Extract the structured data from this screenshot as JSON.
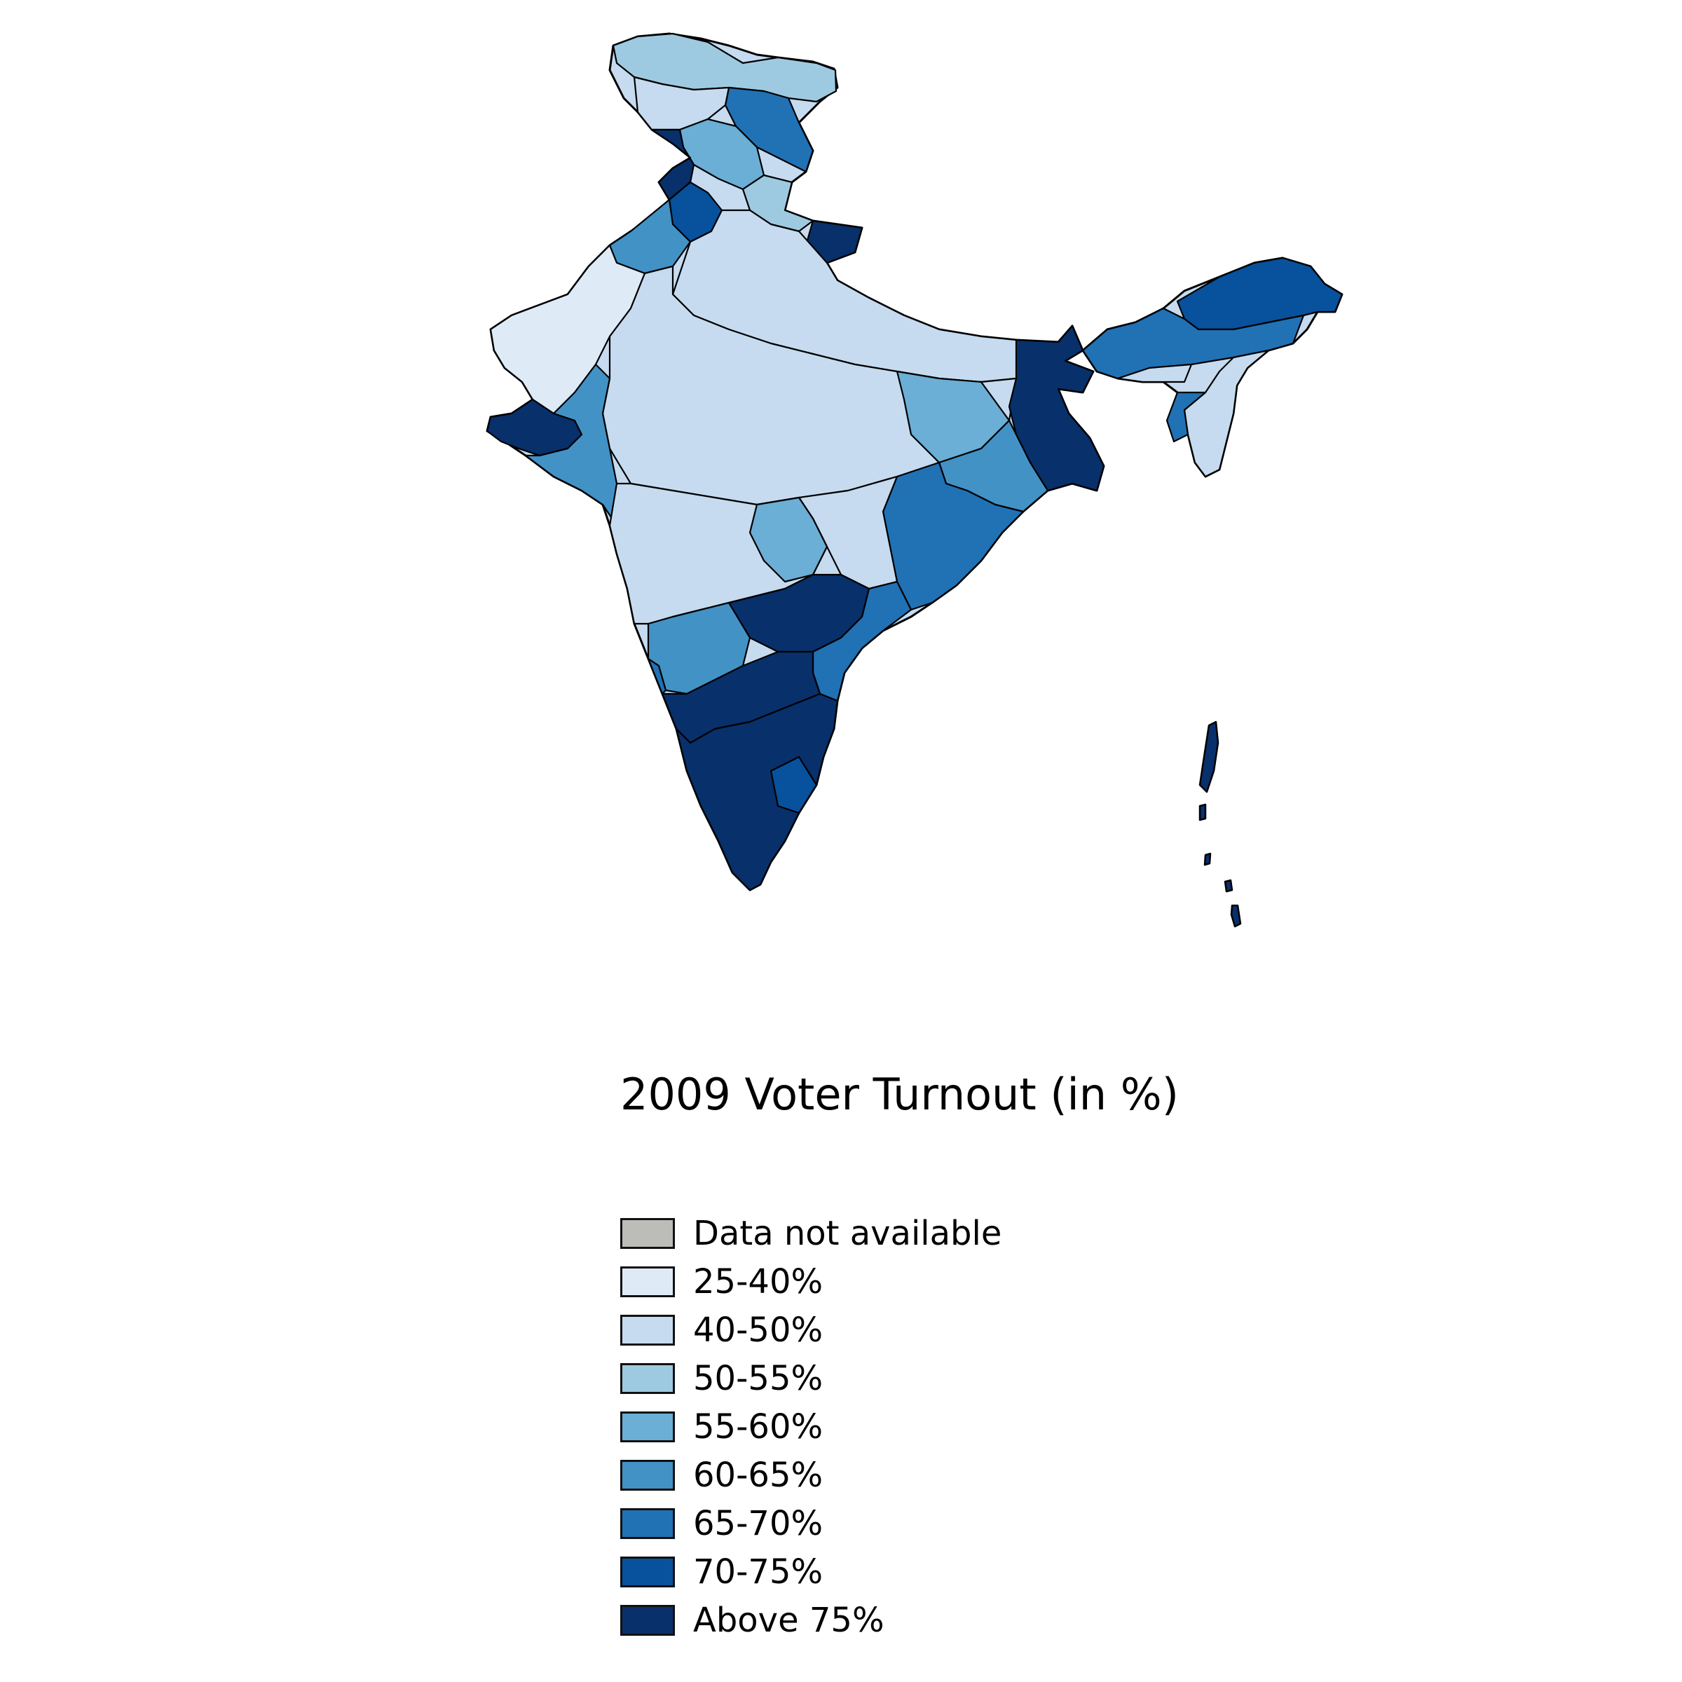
{
  "title": "2009 Voter Turnout (in %)",
  "legend": [
    {
      "label": "Data not available",
      "color": "#bcbdb8"
    },
    {
      "label": "25-40%",
      "color": "#deebf7"
    },
    {
      "label": "40-50%",
      "color": "#c6dbef"
    },
    {
      "label": "50-55%",
      "color": "#9ecae1"
    },
    {
      "label": "55-60%",
      "color": "#6baed6"
    },
    {
      "label": "60-65%",
      "color": "#4292c6"
    },
    {
      "label": "65-70%",
      "color": "#2171b5"
    },
    {
      "label": "70-75%",
      "color": "#08519c"
    },
    {
      "label": "Above 75%",
      "color": "#08306b"
    }
  ],
  "map_regions": {
    "ladakh": "50-55%",
    "kashmir_valley": "65-70%",
    "west_rajasthan": "25-40%",
    "kutch_saurashtra": "Above 75%",
    "gangetic_plain": "40-50%",
    "west_bengal": "Above 75%",
    "arunachal_pradesh": "70-75%",
    "southern_peninsula": "Above 75%",
    "andaman_nicobar": "Above 75%"
  }
}
